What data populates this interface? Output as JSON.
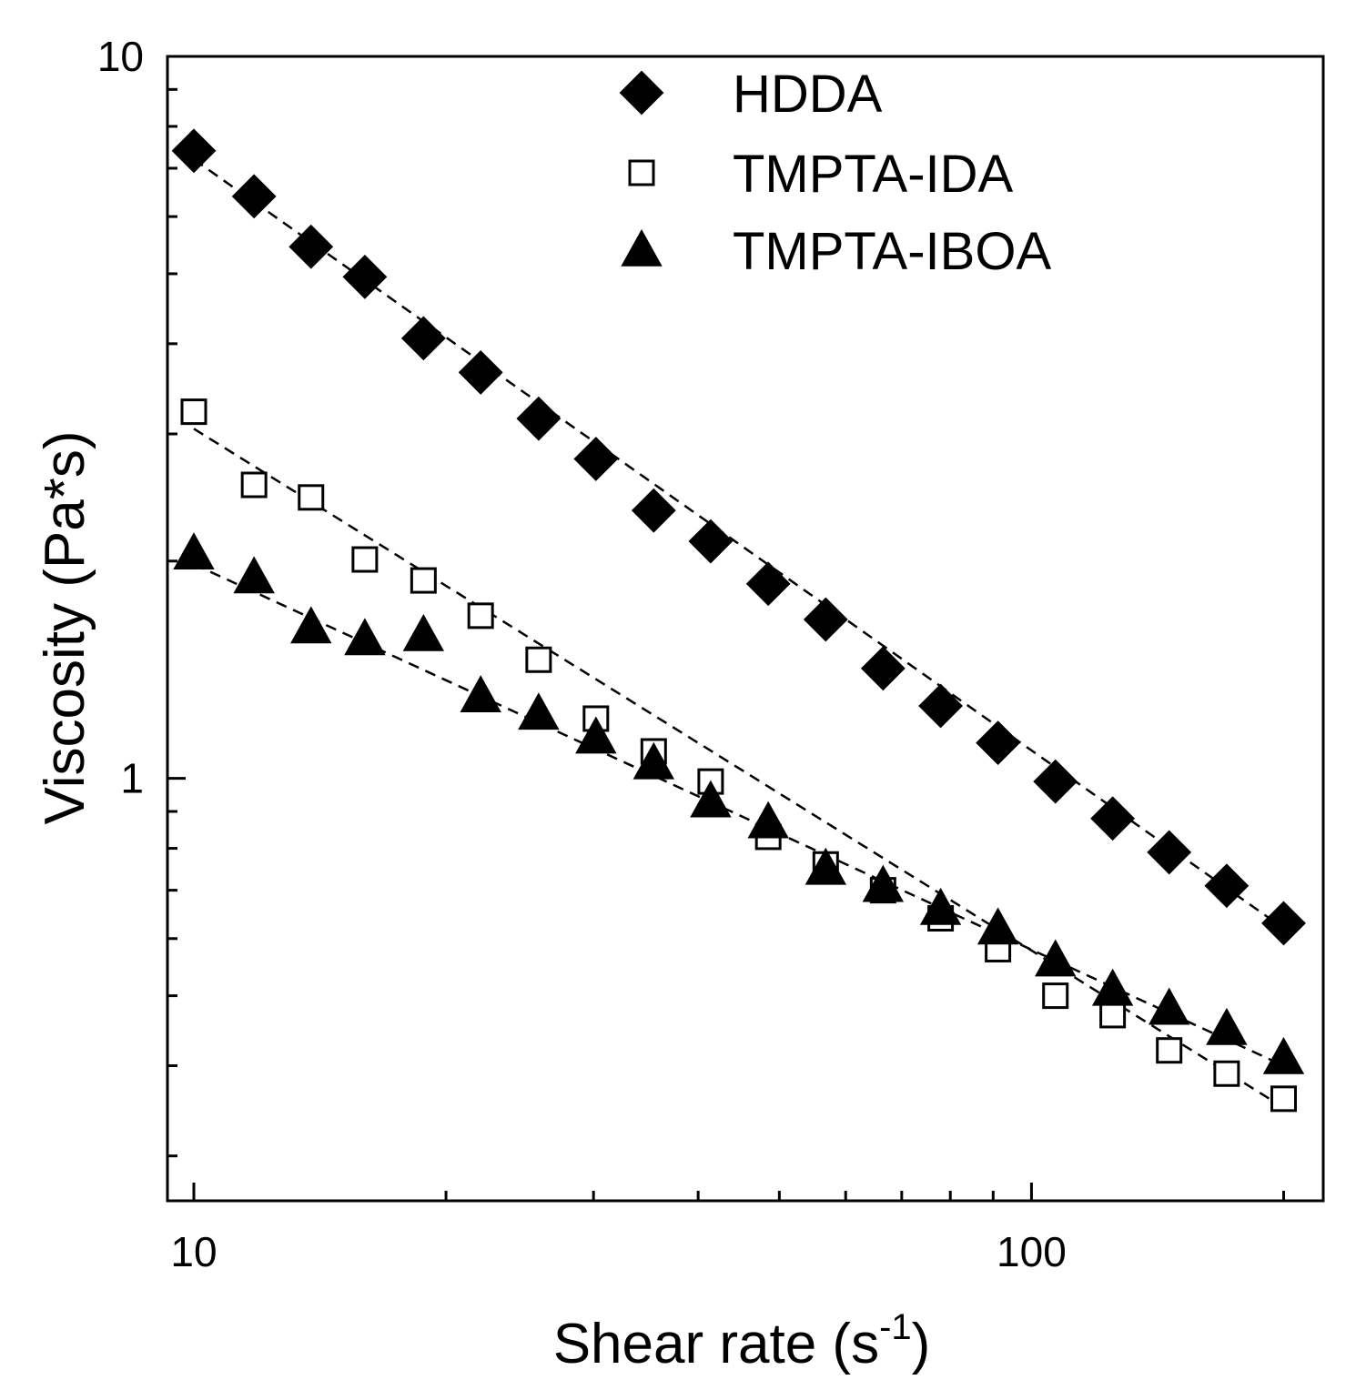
{
  "chart_data": {
    "type": "scatter",
    "title": "",
    "xlabel": "Shear rate (s",
    "xlabel_superscript": "-1",
    "xlabel_close": ")",
    "ylabel": "Viscosity (Pa*s)",
    "xscale": "log",
    "yscale": "log",
    "xlim": [
      9.3,
      223
    ],
    "ylim": [
      0.26,
      10
    ],
    "xticks": [
      10,
      100
    ],
    "xtick_labels": [
      "10",
      "100"
    ],
    "yticks": [
      1,
      10
    ],
    "ytick_labels": [
      "1",
      "10"
    ],
    "legend_position": "top-right",
    "grid": false,
    "x": [
      10,
      11.8,
      13.8,
      16,
      18.8,
      22,
      25.8,
      30.2,
      35.4,
      41.4,
      48.5,
      56.8,
      66.5,
      77.9,
      91.2,
      106.8,
      125,
      146,
      171,
      200
    ],
    "series": [
      {
        "name": "HDDA",
        "marker": "filled-diamond",
        "values": [
          7.4,
          6.4,
          5.45,
          4.95,
          4.07,
          3.65,
          3.15,
          2.77,
          2.35,
          2.13,
          1.86,
          1.66,
          1.42,
          1.26,
          1.12,
          0.99,
          0.88,
          0.79,
          0.71,
          0.63
        ],
        "fit_line": {
          "style": "dashed",
          "start": 7.2,
          "end": 0.62
        }
      },
      {
        "name": "TMPTA-IDA",
        "marker": "open-square",
        "values": [
          3.22,
          2.55,
          2.45,
          2.01,
          1.88,
          1.68,
          1.46,
          1.21,
          1.09,
          0.99,
          0.83,
          0.76,
          0.7,
          0.64,
          0.58,
          0.5,
          0.47,
          0.42,
          0.39,
          0.36
        ],
        "fit_line": {
          "style": "dashed",
          "start": 3.05,
          "end": 0.35
        }
      },
      {
        "name": "TMPTA-IBOA",
        "marker": "filled-triangle",
        "values": [
          2.05,
          1.9,
          1.62,
          1.56,
          1.58,
          1.3,
          1.23,
          1.14,
          1.05,
          0.93,
          0.87,
          0.75,
          0.71,
          0.66,
          0.62,
          0.56,
          0.51,
          0.48,
          0.45,
          0.41
        ],
        "fit_line": {
          "style": "dashed",
          "start": 1.98,
          "end": 0.4
        }
      }
    ]
  }
}
